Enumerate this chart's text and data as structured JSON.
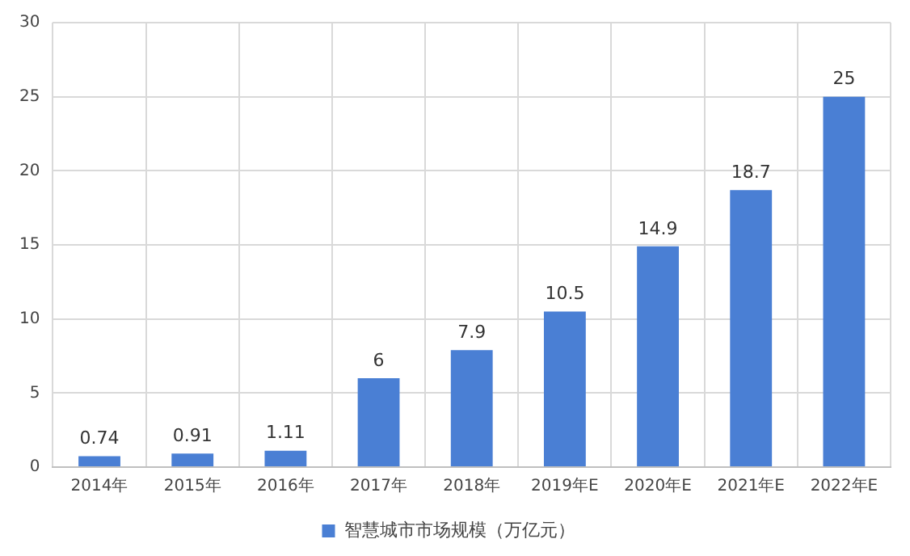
{
  "chart_data": {
    "type": "bar",
    "categories": [
      "2014年",
      "2015年",
      "2016年",
      "2017年",
      "2018年",
      "2019年E",
      "2020年E",
      "2021年E",
      "2022年E"
    ],
    "series": [
      {
        "name": "智慧城市市场规模（万亿元）",
        "color": "#4a7fd4",
        "values": [
          0.74,
          0.91,
          1.11,
          6,
          7.9,
          10.5,
          14.9,
          18.7,
          25
        ]
      }
    ],
    "ylim": [
      0,
      30
    ],
    "yticks": [
      0,
      5,
      10,
      15,
      20,
      25,
      30
    ],
    "grid": true,
    "legend": "bottom",
    "data_labels": true
  }
}
